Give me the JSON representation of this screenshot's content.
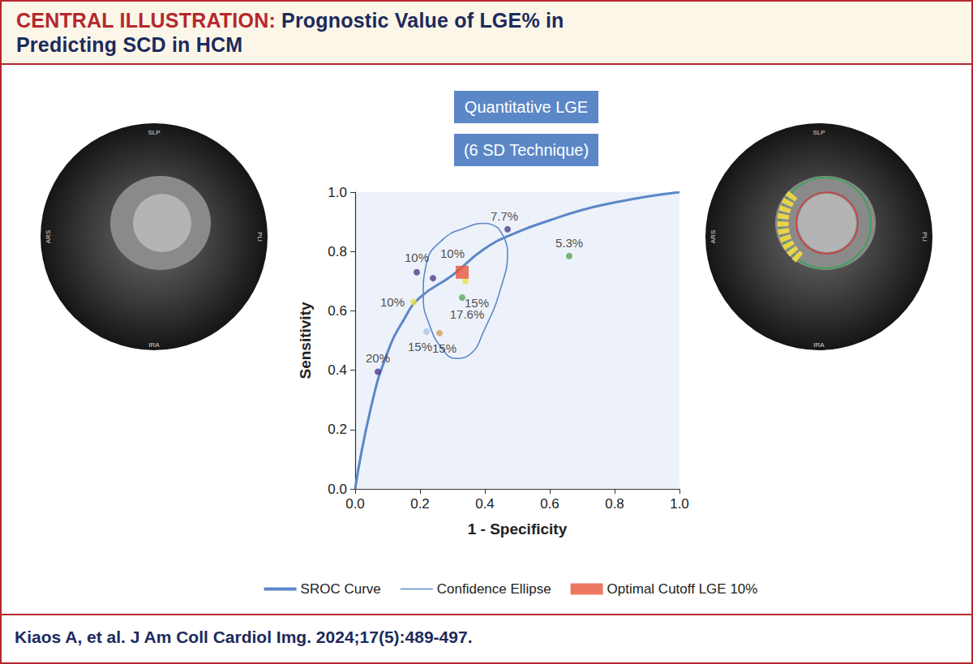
{
  "header": {
    "title": "CENTRAL ILLUSTRATION: Prognostic Value of LGE% in Predicting SCD in HCM"
  },
  "images": {
    "labels": [
      "SLP",
      "ARS",
      "PLI",
      "IRA"
    ]
  },
  "footer": "Kiaos A, et al. J Am Coll Cardiol Img. 2024;17(5):489-497.",
  "chart_data": {
    "type": "scatter",
    "annotations": [
      "Quantitative LGE",
      "(6 SD Technique)"
    ],
    "x_label": "1 - Specificity",
    "y_label": "Sensitivity",
    "xlim": [
      0,
      1
    ],
    "ylim": [
      0,
      1
    ],
    "xticks": [
      {
        "value": 0,
        "label": "0.0"
      },
      0.2,
      0.4,
      0.6,
      0.8,
      {
        "value": 1,
        "label": "1.0"
      }
    ],
    "yticks": [
      {
        "value": 0,
        "label": "0.0"
      },
      0.2,
      0.4,
      0.6,
      0.8,
      {
        "value": 1,
        "label": "1.0"
      }
    ],
    "grid": false,
    "legend": "bottom",
    "series": [
      {
        "name": "SROC Curve",
        "type": "line",
        "color": "#5b87c7",
        "line_style": "solid",
        "x": [
          0,
          0.05,
          0.1,
          0.15,
          0.2,
          0.3,
          0.4,
          0.5,
          0.6,
          0.7,
          0.8,
          0.9,
          1.0
        ],
        "values": [
          0,
          0.28,
          0.46,
          0.57,
          0.645,
          0.72,
          0.81,
          0.865,
          0.905,
          0.94,
          0.965,
          0.985,
          1.0
        ]
      },
      {
        "name": "Confidence Ellipse",
        "type": "line",
        "color": "#5b87c7",
        "line_style": "solid",
        "x": [
          0.44,
          0.47,
          0.45,
          0.4,
          0.35,
          0.31,
          0.27,
          0.23,
          0.21,
          0.22,
          0.27,
          0.34,
          0.4,
          0.44
        ],
        "values": [
          0.88,
          0.8,
          0.68,
          0.54,
          0.45,
          0.44,
          0.47,
          0.55,
          0.65,
          0.76,
          0.84,
          0.88,
          0.895,
          0.88
        ]
      },
      {
        "name": "Optimal Cutoff LGE 10%",
        "type": "scatter",
        "marker": "square",
        "color": "#e8563a",
        "x": [
          0.33
        ],
        "values": [
          0.73
        ]
      },
      {
        "type": "scatter",
        "marker": "circle",
        "x": [
          0.07,
          0.19,
          0.24,
          0.18,
          0.22,
          0.26,
          0.33,
          0.34,
          0.47,
          0.66
        ],
        "values": [
          0.395,
          0.73,
          0.71,
          0.63,
          0.53,
          0.525,
          0.645,
          0.7,
          0.875,
          0.785
        ],
        "colors": [
          "#4b3f8f",
          "#4b3f8f",
          "#4b3f8f",
          "#e6e34a",
          "#a9c5e8",
          "#c9a062",
          "#5aa55a",
          "#e6e34a",
          "#4b3f8f",
          "#5aa55a"
        ],
        "labels": [
          "20%",
          "10%",
          "10%",
          "10%",
          "15%",
          "15%",
          "17.6%",
          "15%",
          "7.7%",
          "5.3%"
        ]
      }
    ]
  }
}
